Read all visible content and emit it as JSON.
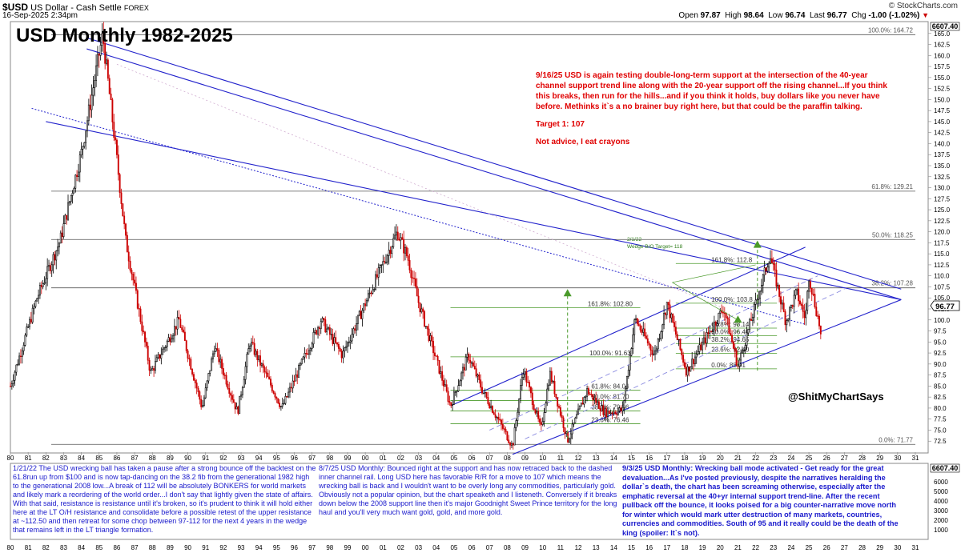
{
  "header": {
    "symbol": "$USD",
    "name": "US Dollar - Cash Settle",
    "exchange": "FOREX",
    "date": "16-Sep-2025 2:34pm",
    "brand": "© StockCharts.com",
    "open_label": "Open",
    "open": "97.87",
    "high_label": "High",
    "high": "98.64",
    "low_label": "Low",
    "low": "96.74",
    "last_label": "Last",
    "last": "96.77",
    "chg_label": "Chg",
    "chg": "-1.00 (-1.02%)",
    "chg_icon": "down-triangle-icon"
  },
  "title": "USD Monthly 1982-2025",
  "annotation_red": {
    "p1": "9/16/25 USD is again testing double-long-term support at the intersection of the 40-year channel support trend line along with the 20-year support off the rising channel...If you think this breaks, then run for the hills...and if you think it holds, buy dollars like you never have before. Methinks it`s a no brainer buy right here, but that could be the paraffin talking.",
    "p2": "Target 1: 107",
    "p3": "Not advice, I eat crayons"
  },
  "wedge_note": {
    "date": "2/1/22",
    "text": "Wedge B/O Target= 118"
  },
  "handle": "@ShitMyChartSays",
  "notes": {
    "left": "1/21/22 The USD wrecking ball has taken a pause after a strong bounce off the backtest on the 61.8run up from $100 and is now tap-dancing on the 38.2 fib from the generational 1982 high to the generational 2008 low...A break of 112 will be absolutely BONKERS for world markets and likely mark a reordering of the world order...I don't say that lightly given the state of affairs. With that said, resistance is resistance until it's broken, so it's prudent to think it will hold either here at the LT O/H resistance and consolidate before a possible retest of the upper resistance at ~112.50 and then retreat for some chop between 97-112 for the next 4 years in the wedge that remains left in the LT triangle formation.",
    "middle": "8/7/25 USD Monthly: Bounced right at the support and has now retraced back to the dashed inner channel rail. Long USD here has favorable R/R for a move to 107 which means the wrecking ball is back and I wouldn't want to be overly long any commodities, particularly gold. Obviously not a popular opinion, but the chart speaketh and I listeneth. Conversely if it breaks down below the 2008 support line then it's major Goodnight Sweet Prince territory for the long haul and you'll very much want gold, gold, and more gold.",
    "right": "9/3/25 USD Monthly: Wrecking ball mode activated - Get ready for the great devaluation...As I've posted previously, despite the narratives heralding the dollar`s death, the chart has been screaming otherwise, especially after the emphatic reversal at the 40+yr internal support trend-line. After the recent pullback off the bounce, it looks poised for a big counter-narrative move north for winter which would mark utter destruction of many markets, countries, currencies and commodities. South of 95 and it really could be the death of the king (spoiler: It`s not)."
  },
  "colors": {
    "up": "#000000",
    "down": "#cc0000",
    "trend": "#2222cc",
    "fib": "#4a9a2a",
    "red_text": "#e00000",
    "note_text": "#1a1acc"
  },
  "chart_data": {
    "type": "candlestick",
    "period": "monthly",
    "x_range": [
      1980.0,
      2031.0
    ],
    "ylim": [
      70.0,
      167.5
    ],
    "y_ticks": [
      72.5,
      75.0,
      77.5,
      80.0,
      82.5,
      85.0,
      87.5,
      90.0,
      92.5,
      95.0,
      97.5,
      100.0,
      102.5,
      105.0,
      107.5,
      110.0,
      112.5,
      115.0,
      117.5,
      120.0,
      122.5,
      125.0,
      127.5,
      130.0,
      132.5,
      135.0,
      137.5,
      140.0,
      142.5,
      145.0,
      147.5,
      150.0,
      152.5,
      155.0,
      157.5,
      160.0,
      162.5,
      165.0
    ],
    "y_tick_labels": [
      "72.5",
      "75.0",
      "77.5",
      "80.0",
      "82.5",
      "85.0",
      "87.5",
      "90.0",
      "92.5",
      "95.0",
      "97.5",
      "100.0",
      "102.5",
      "105.0",
      "107.5",
      "110.0",
      "112.5",
      "115.0",
      "117.5",
      "120.0",
      "122.5",
      "125.0",
      "127.5",
      "130.0",
      "132.5",
      "135.0",
      "137.5",
      "140.0",
      "142.5",
      "145.0",
      "147.5",
      "150.0",
      "152.5",
      "155.0",
      "157.5",
      "160.0",
      "162.5",
      "165.0"
    ],
    "x_tick_labels": [
      "80",
      "81",
      "82",
      "83",
      "84",
      "85",
      "86",
      "87",
      "88",
      "89",
      "90",
      "91",
      "92",
      "93",
      "94",
      "95",
      "96",
      "97",
      "98",
      "99",
      "00",
      "01",
      "02",
      "03",
      "04",
      "05",
      "06",
      "07",
      "08",
      "09",
      "10",
      "11",
      "12",
      "13",
      "14",
      "15",
      "16",
      "17",
      "18",
      "19",
      "20",
      "21",
      "22",
      "23",
      "24",
      "25",
      "26",
      "27",
      "28",
      "29",
      "30",
      "31"
    ],
    "top_value_label": "6607.40",
    "last_price_label": "96.77",
    "price_path": [
      [
        1980.0,
        85.0
      ],
      [
        1981.5,
        105.0
      ],
      [
        1982.8,
        118.0
      ],
      [
        1984.0,
        138.0
      ],
      [
        1985.2,
        164.7
      ],
      [
        1985.9,
        140.0
      ],
      [
        1986.5,
        118.0
      ],
      [
        1987.9,
        88.0
      ],
      [
        1989.5,
        100.0
      ],
      [
        1990.8,
        80.0
      ],
      [
        1991.5,
        94.0
      ],
      [
        1992.8,
        79.0
      ],
      [
        1993.5,
        95.0
      ],
      [
        1995.3,
        80.0
      ],
      [
        1997.5,
        100.0
      ],
      [
        1998.7,
        92.0
      ],
      [
        2001.8,
        120.0
      ],
      [
        2002.4,
        114.0
      ],
      [
        2003.0,
        104.0
      ],
      [
        2004.8,
        80.5
      ],
      [
        2005.8,
        92.0
      ],
      [
        2006.6,
        84.0
      ],
      [
        2008.3,
        71.3
      ],
      [
        2008.9,
        89.0
      ],
      [
        2009.9,
        75.0
      ],
      [
        2010.4,
        88.0
      ],
      [
        2011.4,
        72.7
      ],
      [
        2012.5,
        84.0
      ],
      [
        2013.5,
        79.0
      ],
      [
        2014.5,
        79.5
      ],
      [
        2015.2,
        100.3
      ],
      [
        2016.3,
        92.0
      ],
      [
        2017.0,
        103.8
      ],
      [
        2018.1,
        88.3
      ],
      [
        2020.2,
        102.8
      ],
      [
        2021.0,
        89.5
      ],
      [
        2022.8,
        114.8
      ],
      [
        2023.7,
        99.6
      ],
      [
        2024.3,
        106.3
      ],
      [
        2024.8,
        100.3
      ],
      [
        2025.0,
        110.0
      ],
      [
        2025.7,
        96.8
      ]
    ],
    "fib_levels_long": [
      {
        "label": "100.0%: 164.72",
        "value": 164.72
      },
      {
        "label": "61.8%: 129.21",
        "value": 129.21
      },
      {
        "label": "50.0%: 118.25",
        "value": 118.25
      },
      {
        "label": "38.2%: 107.28",
        "value": 107.28
      },
      {
        "label": "0.0%: 71.77",
        "value": 71.77
      }
    ],
    "fib_levels_2008": [
      {
        "label": "161.8%: 102.80",
        "value": 102.8
      },
      {
        "label": "100.0%: 91.63",
        "value": 91.63
      },
      {
        "label": "61.8%: 84.04",
        "value": 84.04
      },
      {
        "label": "50.0%: 81.70",
        "value": 81.7
      },
      {
        "label": "38.2%: 79.36",
        "value": 79.36
      },
      {
        "label": "23.6%: 76.46",
        "value": 76.46
      }
    ],
    "fib_levels_2021": [
      {
        "label": "161.8%: 112.8",
        "value": 112.8
      },
      {
        "label": "100.0%: 103.8",
        "value": 103.8
      },
      {
        "label": "61.8%: 98.14",
        "value": 98.14
      },
      {
        "label": "50.0%: 96.40",
        "value": 96.4
      },
      {
        "label": "38.2%: 94.65",
        "value": 94.65
      },
      {
        "label": "23.6%: 92.40",
        "value": 92.4
      },
      {
        "label": "0.0%: 88.91",
        "value": 88.91
      }
    ],
    "trend_lines": [
      {
        "name": "upper-resistance",
        "from": [
          1984.3,
          164.0
        ],
        "to": [
          2030.2,
          107.0
        ]
      },
      {
        "name": "lower-resistance",
        "from": [
          1984.3,
          161.5
        ],
        "to": [
          2030.2,
          104.6
        ]
      },
      {
        "name": "long-support",
        "from": [
          1982.0,
          145.0
        ],
        "to": [
          2030.2,
          104.6
        ]
      },
      {
        "name": "channel-upper",
        "from": [
          2004.8,
          80.5
        ],
        "to": [
          2024.8,
          116.5
        ]
      },
      {
        "name": "channel-lower",
        "from": [
          2008.3,
          69.5
        ],
        "to": [
          2030.2,
          104.6
        ]
      }
    ],
    "target_arrows": [
      {
        "x": 2011.4,
        "from": 73.0,
        "to": 107.0
      },
      {
        "x": 2022.1,
        "from": 88.5,
        "to": 118.0
      },
      {
        "x": 2021.0,
        "from": 89.5,
        "to": 101.0
      }
    ]
  }
}
